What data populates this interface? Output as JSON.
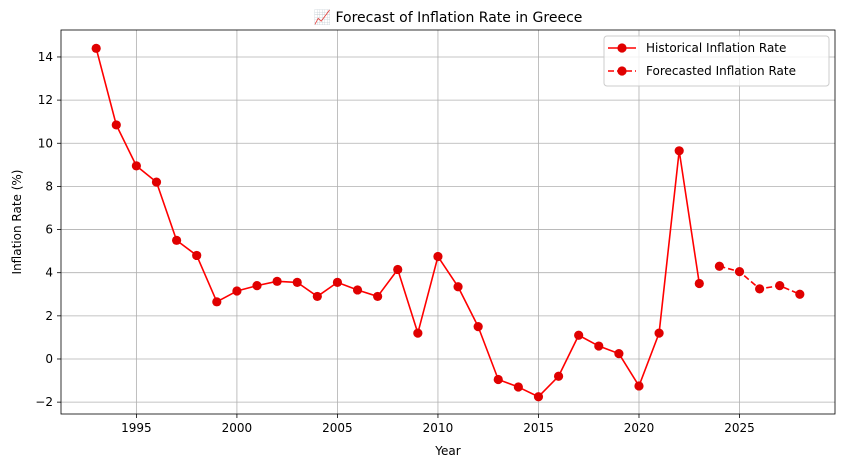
{
  "chart_data": {
    "type": "line",
    "title": "📈 Forecast of Inflation Rate in Greece",
    "xlabel": "Year",
    "ylabel": "Inflation Rate (%)",
    "xlim": [
      1991.25,
      2029.75
    ],
    "ylim": [
      -2.55,
      15.25
    ],
    "grid": true,
    "legend_position": "top-right",
    "x_ticks": [
      1995,
      2000,
      2005,
      2010,
      2015,
      2020,
      2025
    ],
    "y_ticks": [
      -2,
      0,
      2,
      4,
      6,
      8,
      10,
      12,
      14
    ],
    "series": [
      {
        "name": "Historical Inflation Rate",
        "style": "solid",
        "color": "#ff0000",
        "marker_color": "#e00000",
        "x": [
          1993,
          1994,
          1995,
          1996,
          1997,
          1998,
          1999,
          2000,
          2001,
          2002,
          2003,
          2004,
          2005,
          2006,
          2007,
          2008,
          2009,
          2010,
          2011,
          2012,
          2013,
          2014,
          2015,
          2016,
          2017,
          2018,
          2019,
          2020,
          2021,
          2022,
          2023
        ],
        "y": [
          14.4,
          10.85,
          8.95,
          8.2,
          5.5,
          4.8,
          2.65,
          3.15,
          3.4,
          3.6,
          3.55,
          2.9,
          3.55,
          3.2,
          2.9,
          4.15,
          1.2,
          4.75,
          3.35,
          1.5,
          -0.95,
          -1.3,
          -1.75,
          -0.8,
          1.1,
          0.6,
          0.25,
          -1.25,
          1.2,
          9.65,
          3.5
        ]
      },
      {
        "name": "Forecasted Inflation Rate",
        "style": "dashed",
        "color": "#ff0000",
        "marker_color": "#e00000",
        "x": [
          2024,
          2025,
          2026,
          2027,
          2028
        ],
        "y": [
          4.3,
          4.05,
          3.25,
          3.4,
          3.0
        ]
      }
    ]
  }
}
